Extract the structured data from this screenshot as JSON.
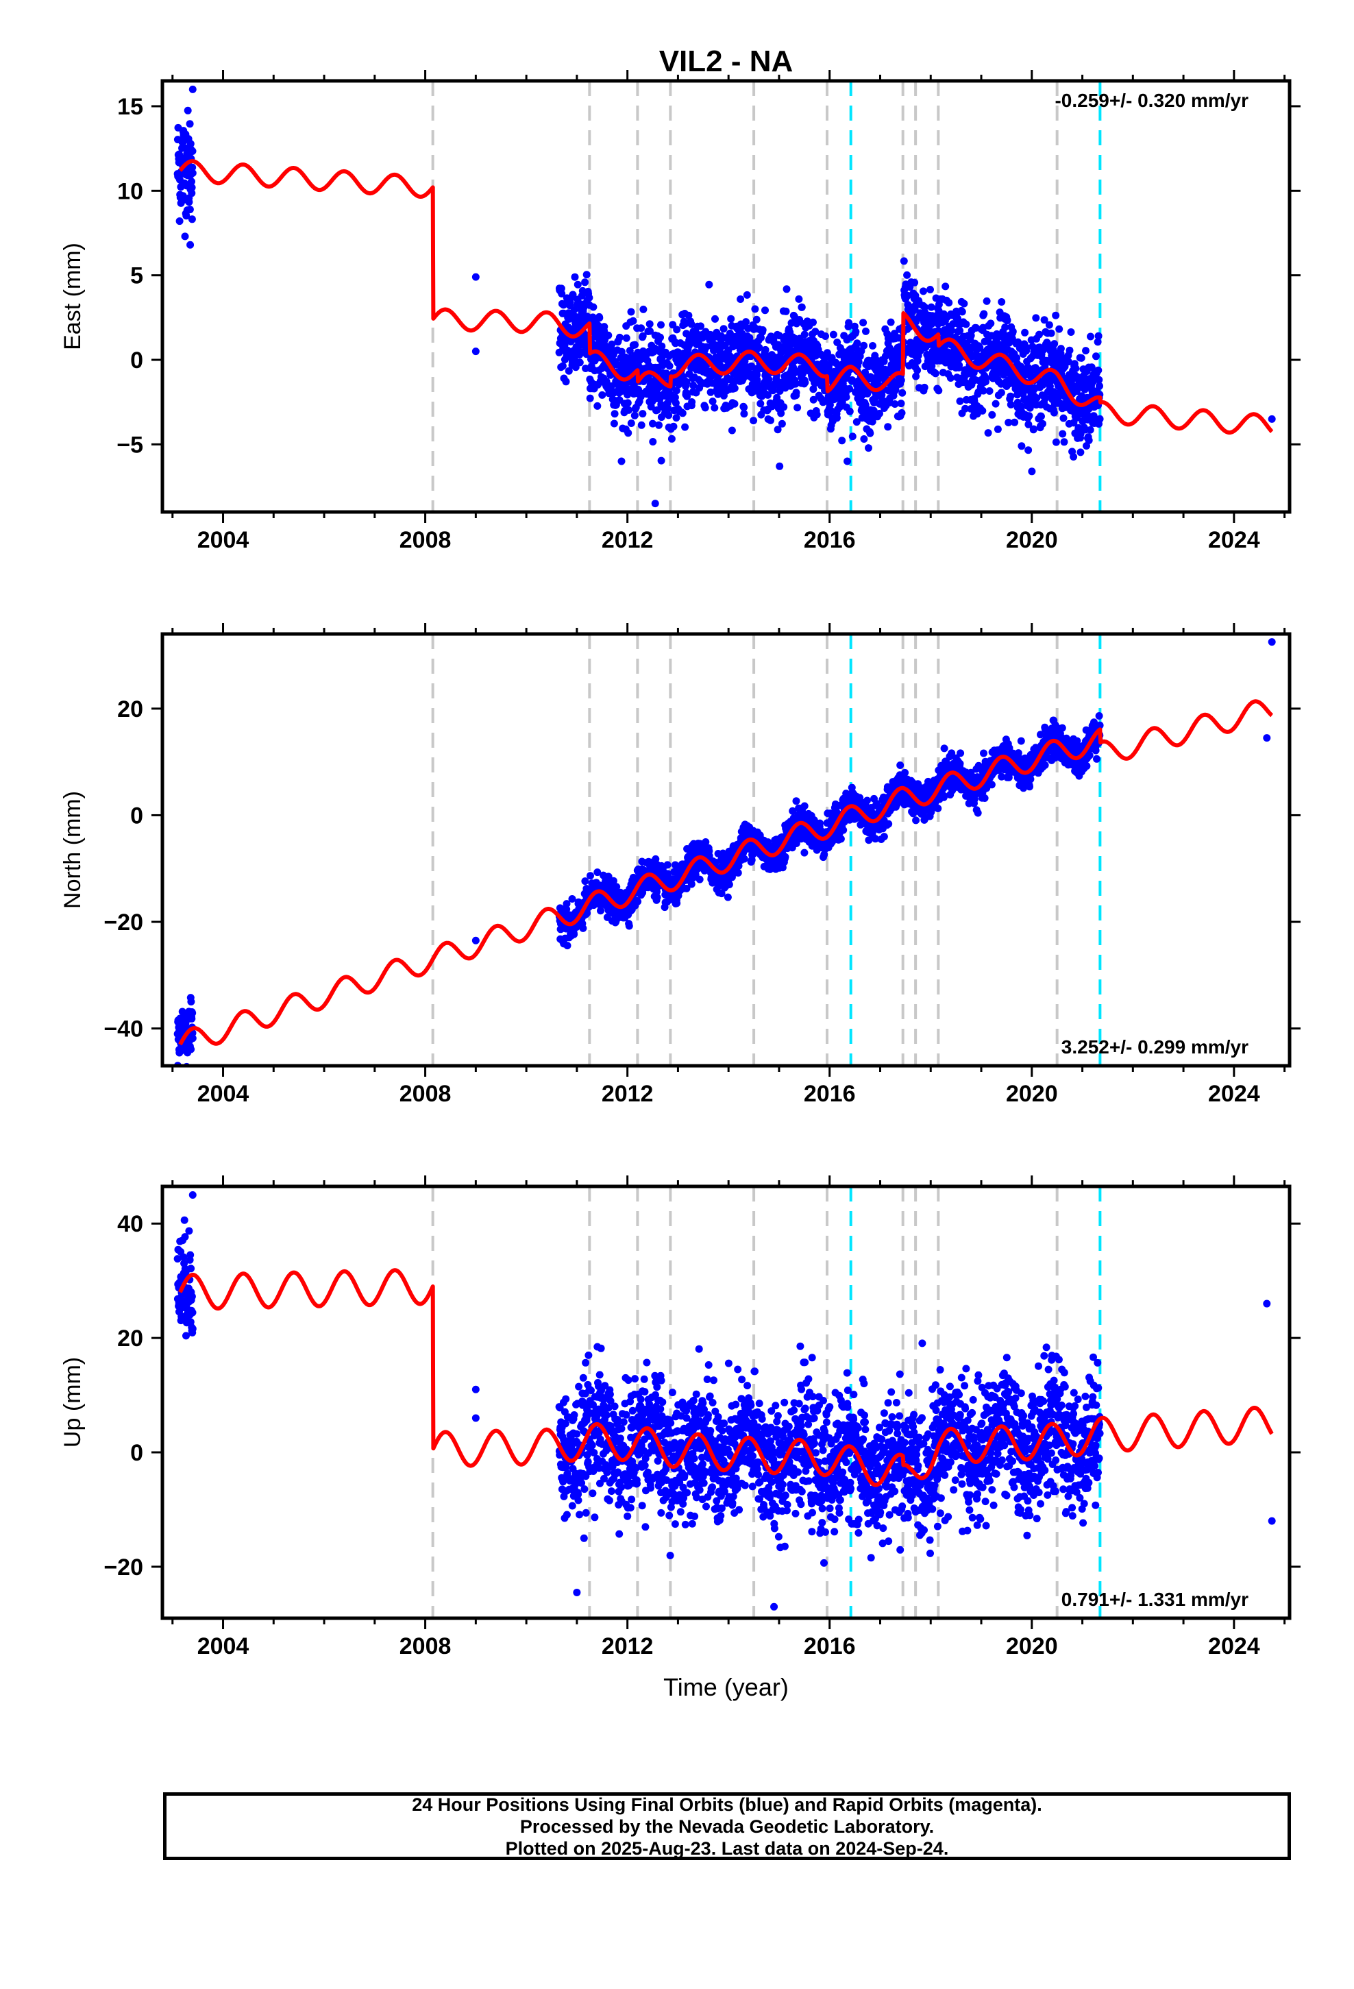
{
  "chart_data": [
    {
      "type": "scatter",
      "title": "VIL2 - NA",
      "ylabel": "East (mm)",
      "xlabel": "",
      "xlim": [
        2002.8,
        2025.1
      ],
      "ylim": [
        -9,
        16.5
      ],
      "x_ticks": [
        2004,
        2008,
        2012,
        2016,
        2020,
        2024
      ],
      "y_ticks": [
        -5,
        0,
        5,
        10,
        15
      ],
      "rate_label": "-0.259+/- 0.320 mm/yr",
      "rate_position": "top-right",
      "grid": false,
      "series": [
        {
          "role": "observations",
          "color": "#0000ff"
        },
        {
          "role": "model",
          "color": "#ff0000"
        }
      ],
      "offsets": {
        "equipment_color": "#c8c8c8",
        "equipment": [
          2008.15,
          2011.25,
          2012.2,
          2012.85,
          2014.5,
          2015.95,
          2017.45,
          2017.7,
          2018.15,
          2020.5
        ],
        "earthquake_color": "#00e5ff",
        "earthquake": [
          2016.42,
          2021.35
        ]
      },
      "model_trend": [
        [
          2003.15,
          11.2
        ],
        [
          2008.15,
          10.2
        ],
        [
          2008.16,
          2.4
        ],
        [
          2010.5,
          2.2
        ],
        [
          2011.25,
          1.8
        ],
        [
          2011.26,
          0.0
        ],
        [
          2012.2,
          -0.8
        ],
        [
          2012.21,
          -1.5
        ],
        [
          2012.85,
          -1.0
        ],
        [
          2012.86,
          -0.4
        ],
        [
          2014.5,
          -0.1
        ],
        [
          2015.95,
          -0.4
        ],
        [
          2015.96,
          -1.3
        ],
        [
          2016.42,
          -1.0
        ],
        [
          2017.45,
          -1.4
        ],
        [
          2017.46,
          2.2
        ],
        [
          2018.15,
          1.5
        ],
        [
          2018.16,
          0.8
        ],
        [
          2020.5,
          -1.3
        ],
        [
          2021.35,
          -2.8
        ],
        [
          2021.36,
          -3.1
        ],
        [
          2024.75,
          -3.9
        ]
      ],
      "model_annual_amplitude": 0.6,
      "observation_spans": [
        {
          "x": [
            2003.1,
            2003.4
          ],
          "center": 11.5,
          "spread": 1.6
        },
        {
          "x": [
            2010.65,
            2021.35
          ],
          "center": "model",
          "spread": 1.4
        }
      ],
      "extra_points": [
        [
          2009.0,
          4.9
        ],
        [
          2009.0,
          0.5
        ],
        [
          2012.55,
          -8.5
        ],
        [
          2016.35,
          -6.0
        ],
        [
          2003.4,
          16.0
        ],
        [
          2003.35,
          6.8
        ],
        [
          2024.75,
          -3.5
        ]
      ]
    },
    {
      "type": "scatter",
      "title": "",
      "ylabel": "North (mm)",
      "xlabel": "",
      "xlim": [
        2002.8,
        2025.1
      ],
      "ylim": [
        -47,
        34
      ],
      "x_ticks": [
        2004,
        2008,
        2012,
        2016,
        2020,
        2024
      ],
      "y_ticks": [
        -40,
        -20,
        0,
        20
      ],
      "rate_label": "3.252+/- 0.299 mm/yr",
      "rate_position": "bottom-right",
      "grid": false,
      "series": [
        {
          "role": "observations",
          "color": "#0000ff"
        },
        {
          "role": "model",
          "color": "#ff0000"
        }
      ],
      "offsets": {
        "equipment_color": "#c8c8c8",
        "equipment": [
          2008.15,
          2011.25,
          2012.2,
          2012.85,
          2014.5,
          2015.95,
          2017.45,
          2017.7,
          2018.15,
          2020.5
        ],
        "earthquake_color": "#00e5ff",
        "earthquake": [
          2016.42,
          2021.35
        ]
      },
      "model_trend": [
        [
          2003.15,
          -43.0
        ],
        [
          2008.15,
          -27.0
        ],
        [
          2010.5,
          -19.5
        ],
        [
          2011.25,
          -17.0
        ],
        [
          2012.2,
          -14.0
        ],
        [
          2012.85,
          -12.0
        ],
        [
          2014.5,
          -6.5
        ],
        [
          2015.95,
          -2.0
        ],
        [
          2016.42,
          -0.5
        ],
        [
          2017.45,
          3.0
        ],
        [
          2018.15,
          5.0
        ],
        [
          2020.5,
          12.0
        ],
        [
          2021.35,
          14.0
        ],
        [
          2021.36,
          11.5
        ],
        [
          2024.75,
          20.0
        ]
      ],
      "model_annual_amplitude": 2.2,
      "observation_spans": [
        {
          "x": [
            2003.1,
            2003.4
          ],
          "center": -41.0,
          "spread": 2.5
        },
        {
          "x": [
            2010.65,
            2021.35
          ],
          "center": "model",
          "spread": 1.6
        }
      ],
      "extra_points": [
        [
          2009.0,
          -23.5
        ],
        [
          2024.75,
          32.5
        ],
        [
          2024.65,
          14.5
        ]
      ]
    },
    {
      "type": "scatter",
      "title": "",
      "ylabel": "Up (mm)",
      "xlabel": "Time (year)",
      "xlim": [
        2002.8,
        2025.1
      ],
      "ylim": [
        -29,
        46.5
      ],
      "x_ticks": [
        2004,
        2008,
        2012,
        2016,
        2020,
        2024
      ],
      "y_ticks": [
        -20,
        0,
        20,
        40
      ],
      "rate_label": "0.791+/- 1.331 mm/yr",
      "rate_position": "bottom-right",
      "grid": false,
      "series": [
        {
          "role": "observations",
          "color": "#0000ff"
        },
        {
          "role": "model",
          "color": "#ff0000"
        }
      ],
      "offsets": {
        "equipment_color": "#c8c8c8",
        "equipment": [
          2008.15,
          2011.25,
          2012.2,
          2012.85,
          2014.5,
          2015.95,
          2017.45,
          2017.7,
          2018.15,
          2020.5
        ],
        "earthquake_color": "#00e5ff",
        "earthquake": [
          2016.42,
          2021.35
        ]
      },
      "model_trend": [
        [
          2003.15,
          28.0
        ],
        [
          2008.15,
          29.0
        ],
        [
          2008.16,
          0.5
        ],
        [
          2010.5,
          1.0
        ],
        [
          2011.25,
          2.0
        ],
        [
          2012.2,
          1.5
        ],
        [
          2012.85,
          0.5
        ],
        [
          2014.5,
          -0.5
        ],
        [
          2015.95,
          -1.0
        ],
        [
          2016.42,
          -2.0
        ],
        [
          2017.45,
          -3.5
        ],
        [
          2017.46,
          -5.0
        ],
        [
          2018.15,
          1.0
        ],
        [
          2020.5,
          2.0
        ],
        [
          2021.35,
          3.0
        ],
        [
          2024.75,
          5.0
        ]
      ],
      "model_annual_amplitude": 3.0,
      "observation_spans": [
        {
          "x": [
            2003.1,
            2003.4
          ],
          "center": 29.0,
          "spread": 4.5
        },
        {
          "x": [
            2010.65,
            2021.35
          ],
          "center": "model",
          "spread": 5.5
        }
      ],
      "extra_points": [
        [
          2009.0,
          11.0
        ],
        [
          2009.0,
          6.0
        ],
        [
          2024.65,
          26.0
        ],
        [
          2024.75,
          -12.0
        ],
        [
          2003.4,
          45.0
        ],
        [
          2014.9,
          -27.0
        ],
        [
          2011.0,
          -24.5
        ]
      ]
    }
  ],
  "caption": {
    "line1": "24 Hour Positions Using Final Orbits (blue) and Rapid Orbits (magenta).",
    "line2": "Processed by the Nevada Geodetic Laboratory.",
    "line3": "Plotted on 2025-Aug-23. Last data on 2024-Sep-24."
  }
}
